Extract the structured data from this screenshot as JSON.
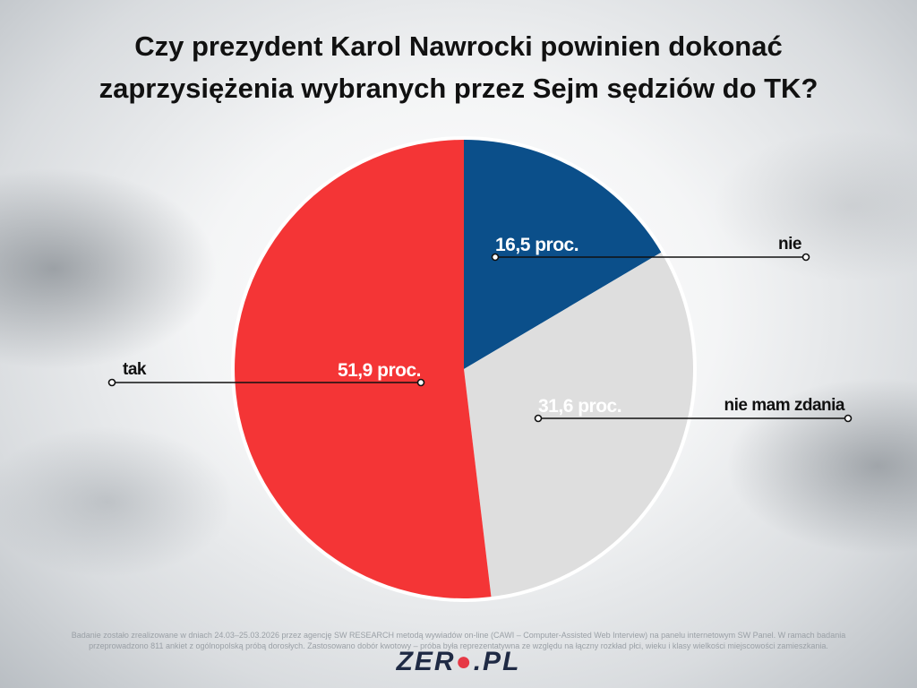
{
  "title_lines": [
    "Czy prezydent Karol Nawrocki powinien dokonać",
    "zaprzysiężenia wybranych przez Sejm sędziów do TK?"
  ],
  "chart_data": {
    "type": "pie",
    "title": "Czy prezydent Karol Nawrocki powinien dokonać zaprzysiężenia wybranych przez Sejm sędziów do TK?",
    "start": "12 o'clock, clockwise",
    "slices": [
      {
        "label": "nie",
        "value": 16.5,
        "value_label": "16,5 proc.",
        "color": "#0b4f8a"
      },
      {
        "label": "nie mam zdania",
        "value": 31.6,
        "value_label": "31,6 proc.",
        "color": "#dedede"
      },
      {
        "label": "tak",
        "value": 51.9,
        "value_label": "51,9 proc.",
        "color": "#f43536"
      }
    ]
  },
  "footnote_lines": [
    "Badanie zostało zrealizowane w dniach 24.03–25.03.2026 przez agencję SW RESEARCH metodą wywiadów on-line (CAWI – Computer-Assisted Web Interview) na panelu internetowym SW Panel. W ramach badania",
    "przeprowadzono 811 ankiet z ogólnopolską próbą dorosłych. Zastosowano dobór kwotowy – próba była reprezentatywna ze względu na łączny rozkład płci, wieku i klasy wielkości miejscowości zamieszkania."
  ],
  "logo": {
    "part1": "ZER",
    "dot": "●",
    "part2": ".PL"
  }
}
